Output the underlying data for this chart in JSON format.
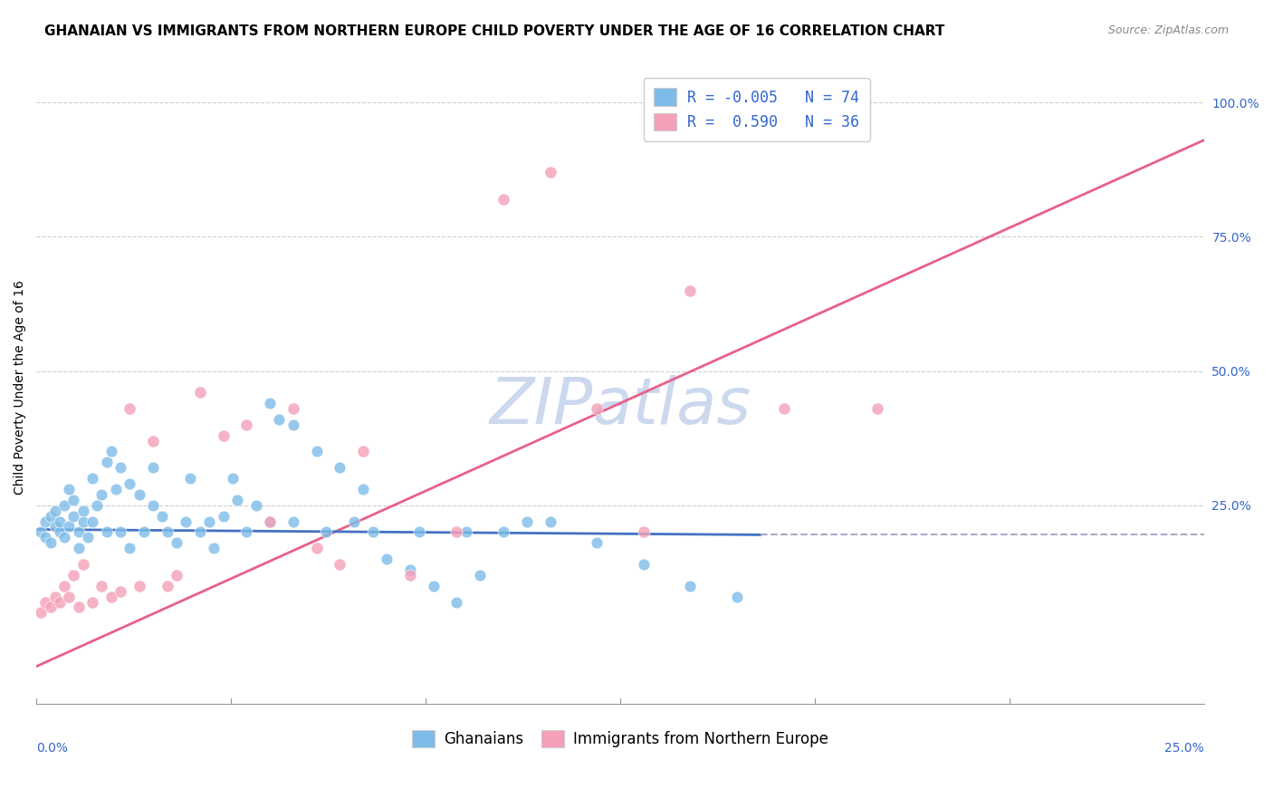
{
  "title": "GHANAIAN VS IMMIGRANTS FROM NORTHERN EUROPE CHILD POVERTY UNDER THE AGE OF 16 CORRELATION CHART",
  "source": "Source: ZipAtlas.com",
  "ylabel": "Child Poverty Under the Age of 16",
  "watermark": "ZIPatlas",
  "ghanaian_scatter_x": [
    0.001,
    0.002,
    0.002,
    0.003,
    0.003,
    0.004,
    0.004,
    0.005,
    0.005,
    0.006,
    0.006,
    0.007,
    0.007,
    0.008,
    0.008,
    0.009,
    0.009,
    0.01,
    0.01,
    0.011,
    0.012,
    0.012,
    0.013,
    0.014,
    0.015,
    0.015,
    0.016,
    0.017,
    0.018,
    0.018,
    0.02,
    0.02,
    0.022,
    0.023,
    0.025,
    0.025,
    0.027,
    0.028,
    0.03,
    0.032,
    0.033,
    0.035,
    0.037,
    0.038,
    0.04,
    0.042,
    0.043,
    0.045,
    0.047,
    0.05,
    0.05,
    0.052,
    0.055,
    0.055,
    0.06,
    0.062,
    0.065,
    0.068,
    0.07,
    0.072,
    0.075,
    0.08,
    0.082,
    0.085,
    0.09,
    0.092,
    0.095,
    0.1,
    0.105,
    0.11,
    0.12,
    0.13,
    0.14,
    0.15
  ],
  "ghanaian_scatter_y": [
    0.2,
    0.22,
    0.19,
    0.23,
    0.18,
    0.21,
    0.24,
    0.2,
    0.22,
    0.25,
    0.19,
    0.28,
    0.21,
    0.23,
    0.26,
    0.2,
    0.17,
    0.22,
    0.24,
    0.19,
    0.3,
    0.22,
    0.25,
    0.27,
    0.33,
    0.2,
    0.35,
    0.28,
    0.32,
    0.2,
    0.29,
    0.17,
    0.27,
    0.2,
    0.25,
    0.32,
    0.23,
    0.2,
    0.18,
    0.22,
    0.3,
    0.2,
    0.22,
    0.17,
    0.23,
    0.3,
    0.26,
    0.2,
    0.25,
    0.44,
    0.22,
    0.41,
    0.4,
    0.22,
    0.35,
    0.2,
    0.32,
    0.22,
    0.28,
    0.2,
    0.15,
    0.13,
    0.2,
    0.1,
    0.07,
    0.2,
    0.12,
    0.2,
    0.22,
    0.22,
    0.18,
    0.14,
    0.1,
    0.08
  ],
  "northern_europe_scatter_x": [
    0.001,
    0.002,
    0.003,
    0.004,
    0.005,
    0.006,
    0.007,
    0.008,
    0.009,
    0.01,
    0.012,
    0.014,
    0.016,
    0.018,
    0.02,
    0.022,
    0.025,
    0.028,
    0.03,
    0.035,
    0.04,
    0.045,
    0.05,
    0.055,
    0.06,
    0.065,
    0.07,
    0.08,
    0.09,
    0.1,
    0.11,
    0.12,
    0.13,
    0.14,
    0.16,
    0.18
  ],
  "northern_europe_scatter_y": [
    0.05,
    0.07,
    0.06,
    0.08,
    0.07,
    0.1,
    0.08,
    0.12,
    0.06,
    0.14,
    0.07,
    0.1,
    0.08,
    0.09,
    0.43,
    0.1,
    0.37,
    0.1,
    0.12,
    0.46,
    0.38,
    0.4,
    0.22,
    0.43,
    0.17,
    0.14,
    0.35,
    0.12,
    0.2,
    0.82,
    0.87,
    0.43,
    0.2,
    0.65,
    0.43,
    0.43
  ],
  "blue_line_x": [
    0.0,
    0.155
  ],
  "blue_line_y": [
    0.205,
    0.195
  ],
  "pink_line_x": [
    0.0,
    0.25
  ],
  "pink_line_y": [
    -0.05,
    0.93
  ],
  "dashed_line_x": [
    0.155,
    0.25
  ],
  "dashed_line_y": [
    0.195,
    0.195
  ],
  "scatter_blue_color": "#7dbce8",
  "scatter_pink_color": "#f4a0b8",
  "line_blue_color": "#4472c4",
  "line_pink_color": "#e8608a",
  "dashed_line_color": "#aaaacc",
  "background_color": "#ffffff",
  "title_fontsize": 11,
  "source_fontsize": 9,
  "axis_label_fontsize": 10,
  "tick_fontsize": 10,
  "legend_fontsize": 12,
  "watermark_color": "#ccd8ee",
  "watermark_fontsize": 52,
  "xmin": 0.0,
  "xmax": 0.25,
  "ymin": -0.12,
  "ymax": 1.06,
  "yticks": [
    0.0,
    0.25,
    0.5,
    0.75,
    1.0
  ],
  "yticklabels": [
    "",
    "25.0%",
    "50.0%",
    "75.0%",
    "100.0%"
  ],
  "xtick_left_label": "0.0%",
  "xtick_right_label": "25.0%",
  "bottom_legend_labels": [
    "Ghanaians",
    "Immigrants from Northern Europe"
  ],
  "legend_r1": "R = -0.005",
  "legend_n1": "N = 74",
  "legend_r2": "R =  0.590",
  "legend_n2": "N = 36"
}
